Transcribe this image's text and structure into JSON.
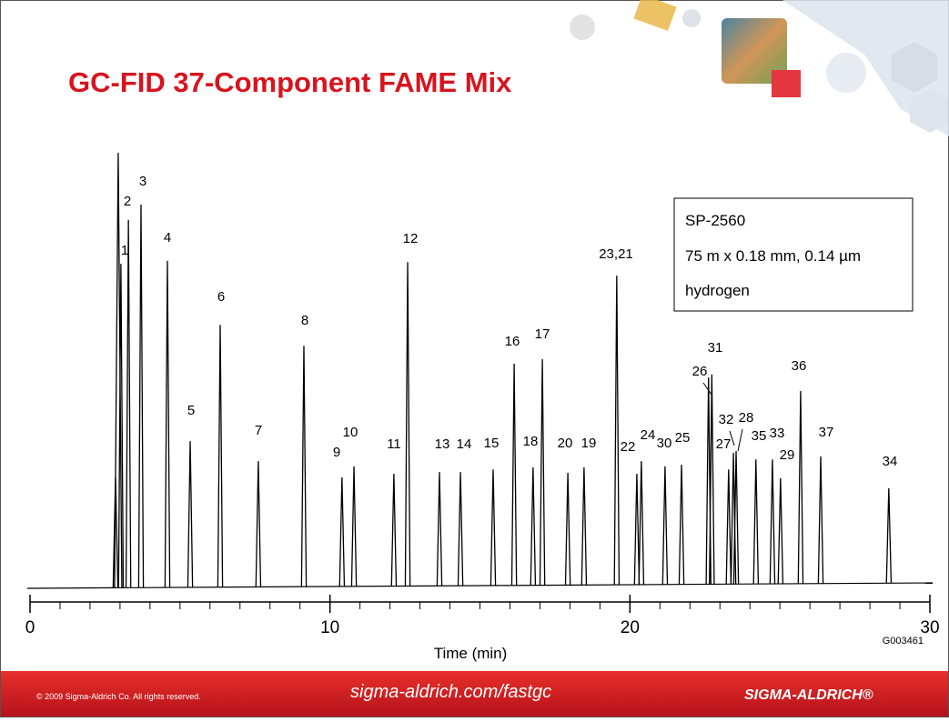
{
  "title": "GC-FID 37-Component FAME Mix",
  "chart_data": {
    "type": "chromatogram",
    "x": [
      2.85,
      2.94,
      3.03,
      3.28,
      3.7,
      4.58,
      5.34,
      6.34,
      7.61,
      9.13,
      10.4,
      10.8,
      12.13,
      12.59,
      13.65,
      14.35,
      15.44,
      16.14,
      16.77,
      17.08,
      17.93,
      18.47,
      19.56,
      20.23,
      20.38,
      21.17,
      21.72,
      22.62,
      22.73,
      23.29,
      23.45,
      23.54,
      24.2,
      24.75,
      25.02,
      25.69,
      26.36,
      28.63
    ],
    "values": [
      25.5,
      100,
      74.5,
      84.6,
      88.1,
      75.2,
      33.8,
      60.5,
      29.2,
      55.7,
      25.5,
      28.0,
      26.3,
      74.9,
      26.7,
      26.7,
      27.3,
      51.6,
      27.8,
      52.6,
      26.5,
      27.8,
      71.8,
      26.3,
      29.2,
      28.0,
      28.4,
      48.4,
      49.1,
      27.3,
      31.1,
      31.5,
      29.6,
      29.6,
      25.3,
      45.3,
      30.3,
      23.0
    ],
    "labels": [
      null,
      null,
      "1",
      "2",
      "3",
      "4",
      "5",
      "6",
      "7",
      "8",
      "9",
      "10",
      "11",
      "12",
      "13",
      "14",
      "15",
      "16",
      "18",
      "17",
      "20",
      "19",
      "23,21",
      "22",
      "24",
      "30",
      "25",
      "26",
      "31",
      "27",
      "32",
      "28",
      "35",
      "33",
      "29",
      "36",
      "37",
      "34"
    ],
    "color": "#000000",
    "xlabel": "Time (min)",
    "xlim": [
      0,
      30
    ],
    "xticks": [
      0,
      10,
      20,
      30
    ],
    "xminorticks": [
      1,
      2,
      3,
      4,
      5,
      6,
      7,
      8,
      9,
      11,
      12,
      13,
      14,
      15,
      16,
      17,
      18,
      19,
      21,
      22,
      23,
      24,
      25,
      26,
      27,
      28,
      29
    ],
    "ylim": [
      0,
      100
    ]
  },
  "info_box": {
    "lines": [
      "SP-2560",
      "75 m x 0.18 mm, 0.14 µm",
      "hydrogen"
    ]
  },
  "code": "G003461",
  "footer": {
    "copyright": "© 2009 Sigma-Aldrich Co. All rights reserved.",
    "url": "sigma-aldrich.com/fastgc",
    "brand": "SIGMA-ALDRICH®"
  }
}
